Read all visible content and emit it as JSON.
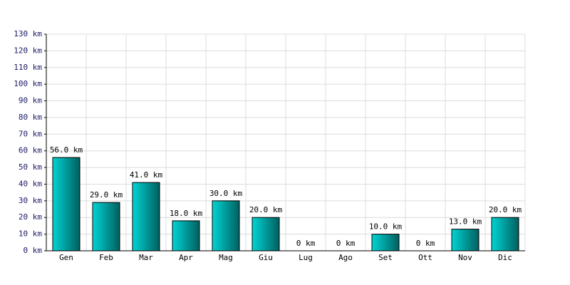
{
  "chart_data": {
    "type": "bar",
    "categories": [
      "Gen",
      "Feb",
      "Mar",
      "Apr",
      "Mag",
      "Giu",
      "Lug",
      "Ago",
      "Set",
      "Ott",
      "Nov",
      "Dic"
    ],
    "values": [
      56,
      29,
      41,
      18,
      30,
      20,
      0,
      0,
      10,
      0,
      13,
      20
    ],
    "value_labels": [
      "56.0 km",
      "29.0 km",
      "41.0 km",
      "18.0 km",
      "30.0 km",
      "20.0 km",
      "0 km",
      "0 km",
      "10.0 km",
      "0 km",
      "13.0 km",
      "20.0 km"
    ],
    "color": "#00d4d4",
    "ylim": [
      0,
      130
    ],
    "yticks": [
      {
        "value": 0,
        "label": "0 km"
      },
      {
        "value": 10,
        "label": "10 km"
      },
      {
        "value": 20,
        "label": "20 km"
      },
      {
        "value": 30,
        "label": "30 km"
      },
      {
        "value": 40,
        "label": "40 km"
      },
      {
        "value": 50,
        "label": "50 km"
      },
      {
        "value": 60,
        "label": "60 km"
      },
      {
        "value": 70,
        "label": "70 km"
      },
      {
        "value": 80,
        "label": "80 km"
      },
      {
        "value": 90,
        "label": "90 km"
      },
      {
        "value": 100,
        "label": "100 km"
      },
      {
        "value": 110,
        "label": "110 km"
      },
      {
        "value": 120,
        "label": "120 km"
      },
      {
        "value": 130,
        "label": "130 km"
      }
    ],
    "grid": true
  }
}
